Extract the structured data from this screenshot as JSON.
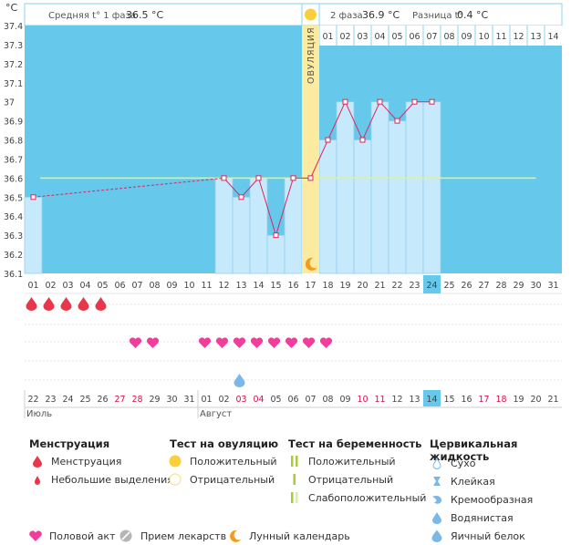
{
  "chart_data": {
    "type": "line",
    "unit_label": "°C",
    "header": {
      "phase1_label": "Средняя t° 1 фаза",
      "phase1_value": "36.5 °C",
      "phase2_label": "2 фаза",
      "phase2_value": "36.9 °C",
      "diff_label": "Разница t°",
      "diff_value": "0.4 °C"
    },
    "ylim": [
      36.1,
      37.4
    ],
    "y_ticks": [
      "36.1",
      "36.2",
      "36.3",
      "36.4",
      "36.5",
      "36.6",
      "36.7",
      "36.8",
      "36.9",
      "37",
      "37.1",
      "37.2",
      "37.3",
      "37.4"
    ],
    "cycle_days": [
      "01",
      "02",
      "03",
      "04",
      "05",
      "06",
      "07",
      "08",
      "09",
      "10",
      "11",
      "12",
      "13",
      "14",
      "15",
      "16",
      "17",
      "18",
      "19",
      "20",
      "21",
      "22",
      "23",
      "24",
      "25",
      "26",
      "27",
      "28",
      "29",
      "30",
      "31"
    ],
    "phase2_days": [
      "01",
      "02",
      "03",
      "04",
      "05",
      "06",
      "07",
      "08",
      "09",
      "10",
      "11",
      "12",
      "13",
      "14"
    ],
    "ovulation_day_index": 16,
    "ovulation_label": "ОВУЛЯЦИЯ",
    "coverline": 36.6,
    "current_day_index": 23,
    "series": [
      {
        "values": [
          36.5,
          null,
          null,
          null,
          null,
          null,
          null,
          null,
          null,
          null,
          null,
          36.6,
          36.5,
          36.6,
          36.3,
          36.6,
          36.6,
          36.8,
          37.0,
          36.8,
          37.0,
          36.9,
          37.0,
          37.0,
          null,
          null,
          null,
          null,
          null,
          null,
          null
        ]
      }
    ],
    "menstruation_days": [
      0,
      1,
      2,
      3,
      4
    ],
    "intercourse_days": [
      6,
      7,
      10,
      11,
      12,
      13,
      14,
      15,
      16,
      17
    ],
    "cervical_days": [
      {
        "day": 12,
        "type": "eggwhite"
      }
    ],
    "positive_ovulation_test_day": 16,
    "moon_day": 16,
    "calendar_dates": [
      "22",
      "23",
      "24",
      "25",
      "26",
      "27",
      "28",
      "29",
      "30",
      "31",
      "01",
      "02",
      "03",
      "04",
      "05",
      "06",
      "07",
      "08",
      "09",
      "10",
      "11",
      "12",
      "13",
      "14",
      "15",
      "16",
      "17",
      "18",
      "19",
      "20",
      "21"
    ],
    "calendar_red_indices": [
      5,
      6,
      12,
      13,
      19,
      20,
      26,
      27
    ],
    "month_labels": [
      {
        "index": 0,
        "label": "Июль"
      },
      {
        "index": 10,
        "label": "Август"
      }
    ]
  },
  "legend": {
    "menstruation": {
      "title": "Менструация",
      "items": [
        "Менструация",
        "Небольшие выделения"
      ]
    },
    "ovulation_test": {
      "title": "Тест на овуляцию",
      "items": [
        "Положительный",
        "Отрицательный"
      ]
    },
    "pregnancy_test": {
      "title": "Тест на беременность",
      "items": [
        "Положительный",
        "Отрицательный",
        "Слабоположительный"
      ]
    },
    "cervical": {
      "title": "Цервикальная жидкость",
      "items": [
        "Сухо",
        "Клейкая",
        "Кремообразная",
        "Водянистая",
        "Яичный белок"
      ]
    },
    "bottom": [
      "Половой акт",
      "Прием лекарств",
      "Лунный календарь"
    ]
  },
  "colors": {
    "plot_bg": "#66c9ec",
    "bar_fill": "#c6e9fb",
    "bar_stroke": "#8fd0ef",
    "line": "#e0245e",
    "coverline": "#f3f06a",
    "ovulation_band": "#faeba0",
    "drop": "#e8364b",
    "heart": "#f23d9a",
    "eggwhite": "#7ab8e8",
    "sun": "#fbcf3b",
    "moon": "#f59b1b",
    "highlight": "#66c9ec",
    "red_text": "#d3114a"
  }
}
